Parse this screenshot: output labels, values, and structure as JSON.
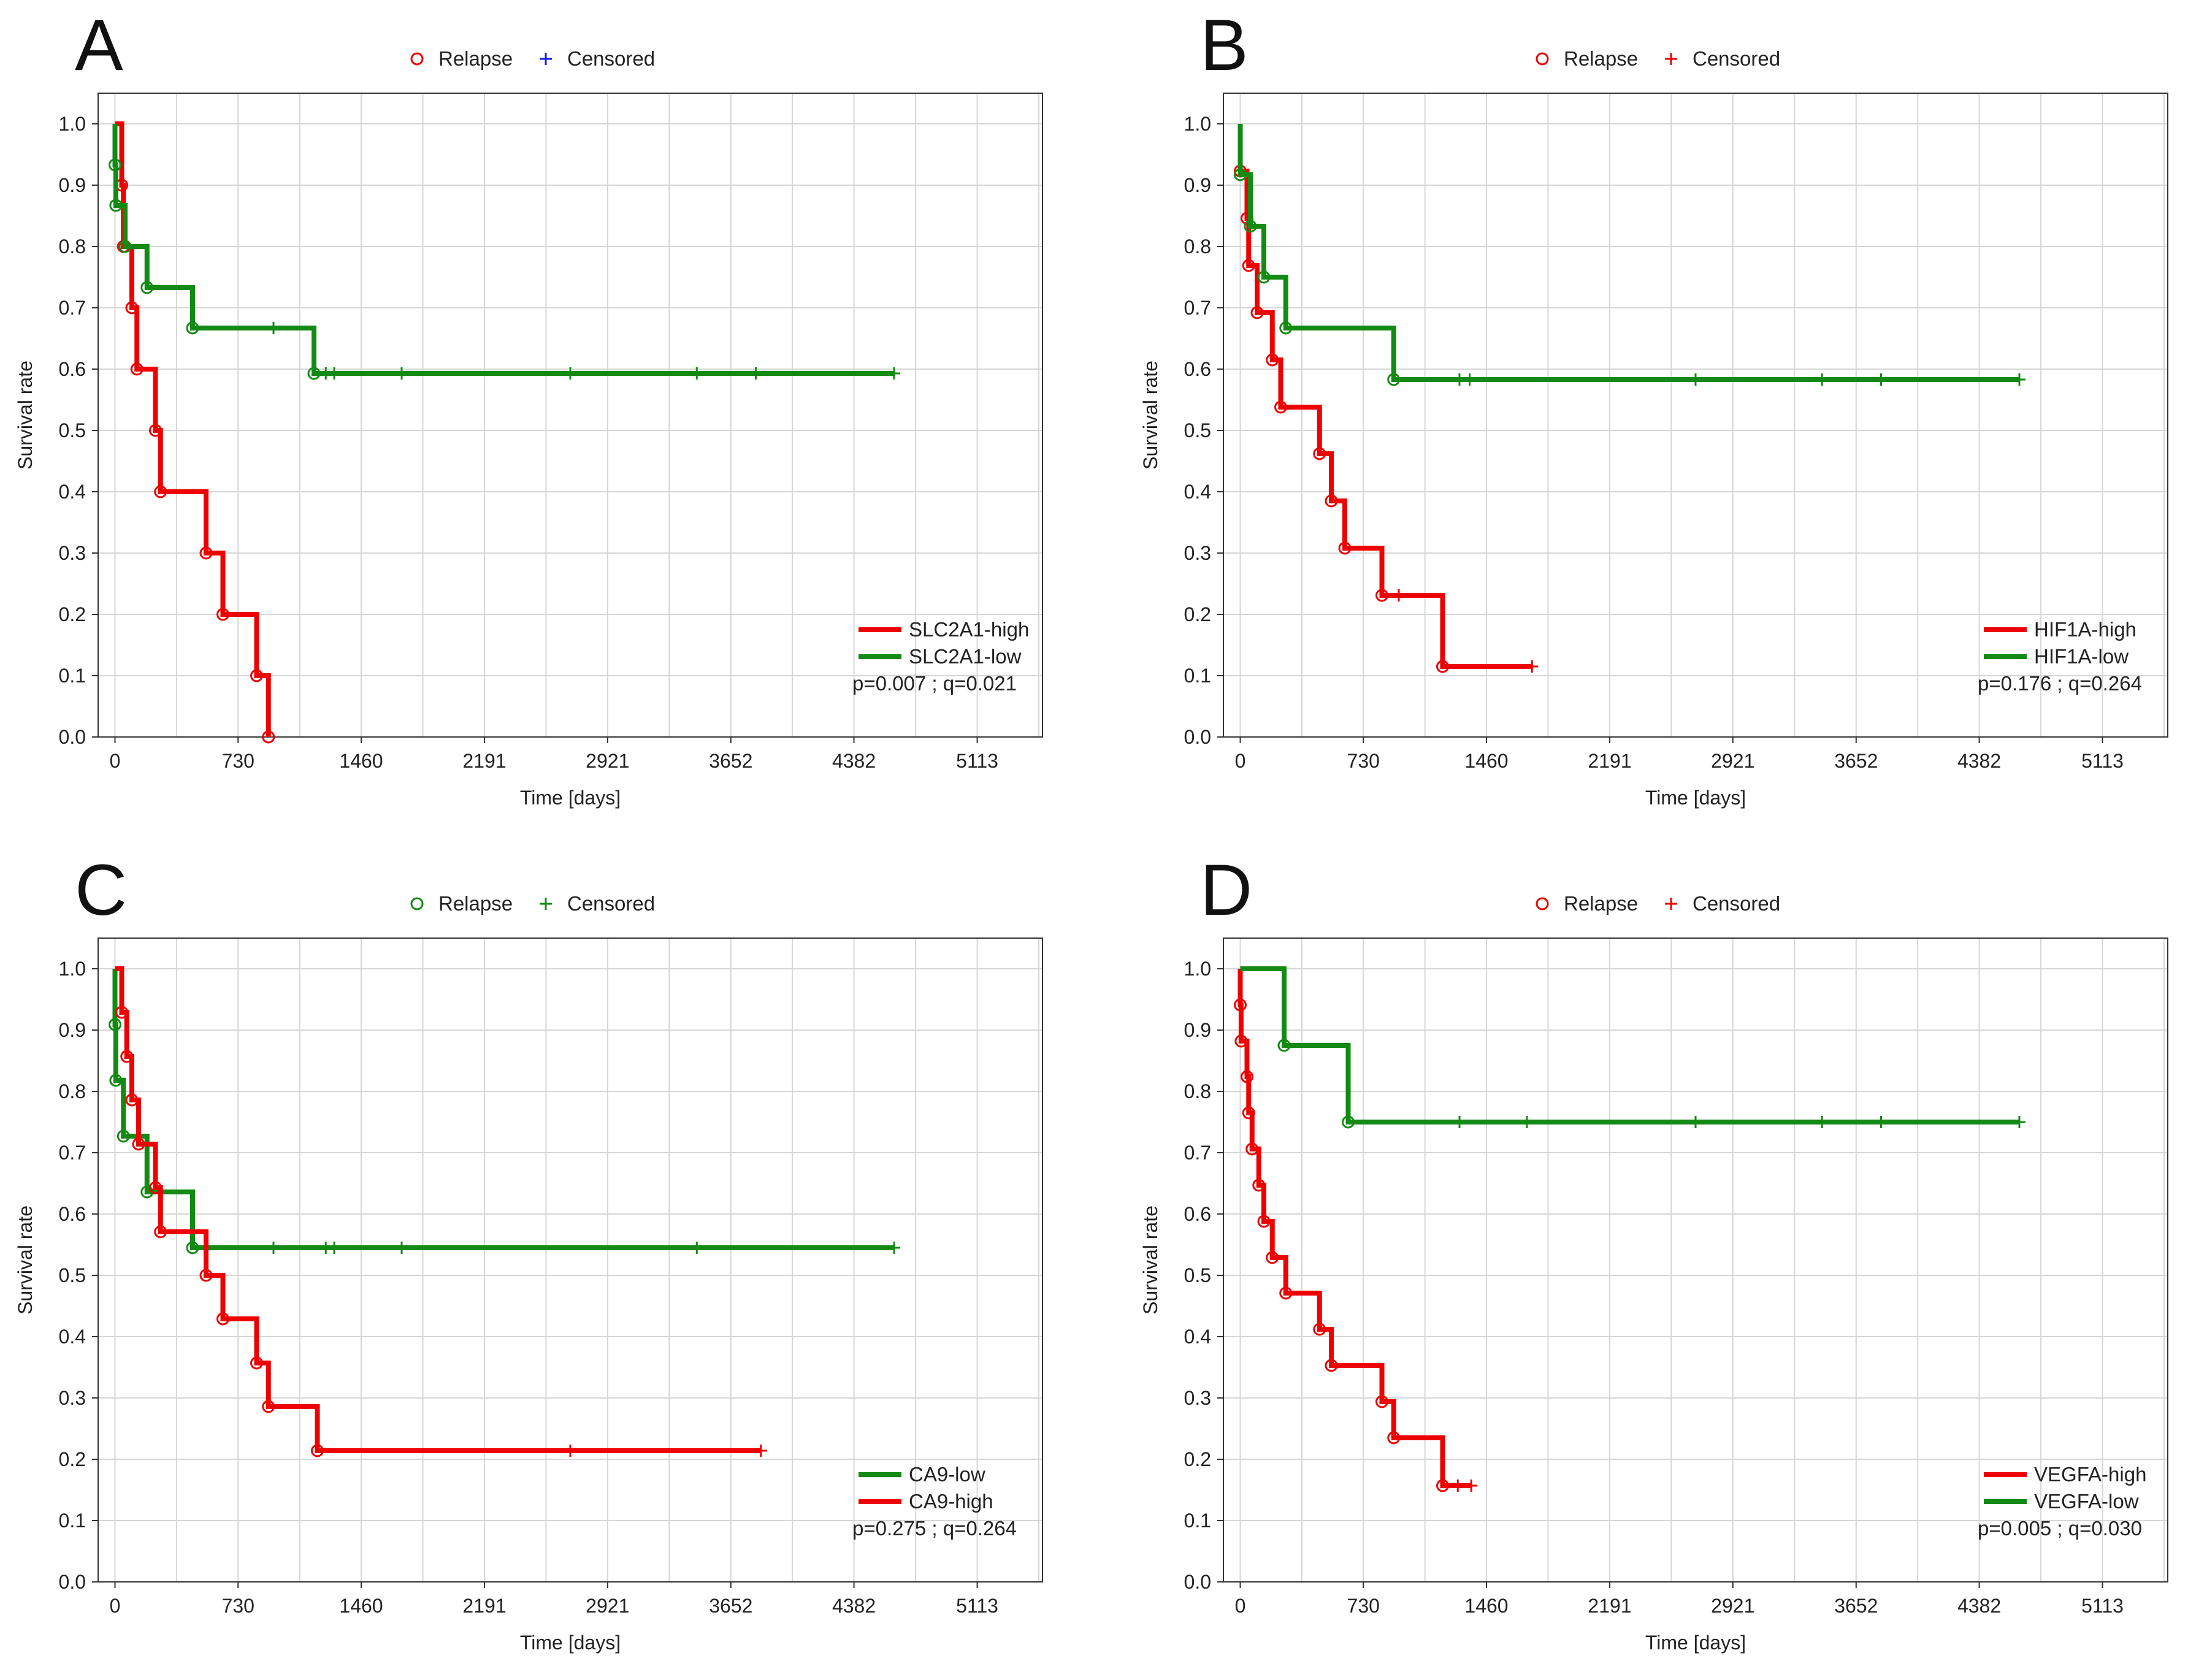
{
  "figure": {
    "x_axis": {
      "title": "Time [days]",
      "ticks": [
        0,
        730,
        1460,
        2191,
        2921,
        3652,
        4382,
        5113
      ],
      "range": [
        -100,
        5500
      ]
    },
    "y_axis": {
      "title": "Survival rate",
      "ticks": [
        "0.0",
        "0.1",
        "0.2",
        "0.3",
        "0.4",
        "0.5",
        "0.6",
        "0.7",
        "0.8",
        "0.9",
        "1.0"
      ],
      "range": [
        0,
        1.05
      ]
    }
  },
  "colors": {
    "red": "#ee0000",
    "green": "#138a13",
    "blue": "#1a1aee"
  },
  "chart_data": [
    {
      "type": "line",
      "panel": "A",
      "top_legend": [
        {
          "marker": "o",
          "label": "Relapse",
          "color": "red"
        },
        {
          "marker": "+",
          "label": "Censored",
          "color": "blue"
        }
      ],
      "legend": [
        {
          "label": "SLC2A1-high",
          "color": "red"
        },
        {
          "label": "SLC2A1-low",
          "color": "green"
        }
      ],
      "stats": "p=0.007 ; q=0.021",
      "series": [
        {
          "name": "SLC2A1-high",
          "color": "red",
          "steps": [
            [
              0,
              1.0
            ],
            [
              40,
              0.9
            ],
            [
              50,
              0.8
            ],
            [
              100,
              0.7
            ],
            [
              130,
              0.6
            ],
            [
              240,
              0.5
            ],
            [
              270,
              0.4
            ],
            [
              540,
              0.3
            ],
            [
              640,
              0.2
            ],
            [
              840,
              0.1
            ],
            [
              910,
              0.0
            ]
          ],
          "relapse": [
            [
              40,
              0.9
            ],
            [
              50,
              0.8
            ],
            [
              100,
              0.7
            ],
            [
              130,
              0.6
            ],
            [
              240,
              0.5
            ],
            [
              270,
              0.4
            ],
            [
              540,
              0.3
            ],
            [
              640,
              0.2
            ],
            [
              840,
              0.1
            ],
            [
              910,
              0.0
            ]
          ],
          "censored": []
        },
        {
          "name": "SLC2A1-low",
          "color": "green",
          "steps": [
            [
              0,
              1.0
            ],
            [
              0,
              0.933
            ],
            [
              5,
              0.867
            ],
            [
              60,
              0.8
            ],
            [
              190,
              0.733
            ],
            [
              460,
              0.667
            ],
            [
              1180,
              0.593
            ],
            [
              4620,
              0.593
            ]
          ],
          "relapse": [
            [
              0,
              0.933
            ],
            [
              5,
              0.867
            ],
            [
              60,
              0.8
            ],
            [
              190,
              0.733
            ],
            [
              460,
              0.667
            ],
            [
              1180,
              0.593
            ]
          ],
          "censored": [
            [
              940,
              0.667
            ],
            [
              1250,
              0.593
            ],
            [
              1300,
              0.593
            ],
            [
              1700,
              0.593
            ],
            [
              2700,
              0.593
            ],
            [
              3450,
              0.593
            ],
            [
              3800,
              0.593
            ],
            [
              4620,
              0.593
            ]
          ]
        }
      ]
    },
    {
      "type": "line",
      "panel": "B",
      "top_legend": [
        {
          "marker": "o",
          "label": "Relapse",
          "color": "red"
        },
        {
          "marker": "+",
          "label": "Censored",
          "color": "red"
        }
      ],
      "legend": [
        {
          "label": "HIF1A-high",
          "color": "red"
        },
        {
          "label": "HIF1A-low",
          "color": "green"
        }
      ],
      "stats": "p=0.176 ; q=0.264",
      "series": [
        {
          "name": "HIF1A-high",
          "color": "red",
          "steps": [
            [
              0,
              0.923
            ],
            [
              40,
              0.846
            ],
            [
              50,
              0.769
            ],
            [
              100,
              0.692
            ],
            [
              190,
              0.615
            ],
            [
              240,
              0.538
            ],
            [
              470,
              0.462
            ],
            [
              540,
              0.385
            ],
            [
              620,
              0.308
            ],
            [
              840,
              0.231
            ],
            [
              1200,
              0.115
            ],
            [
              1730,
              0.115
            ]
          ],
          "relapse": [
            [
              0,
              0.923
            ],
            [
              40,
              0.846
            ],
            [
              50,
              0.769
            ],
            [
              100,
              0.692
            ],
            [
              190,
              0.615
            ],
            [
              240,
              0.538
            ],
            [
              470,
              0.462
            ],
            [
              540,
              0.385
            ],
            [
              620,
              0.308
            ],
            [
              840,
              0.231
            ],
            [
              1200,
              0.115
            ]
          ],
          "censored": [
            [
              940,
              0.231
            ],
            [
              1730,
              0.115
            ]
          ]
        },
        {
          "name": "HIF1A-low",
          "color": "green",
          "steps": [
            [
              0,
              1.0
            ],
            [
              0,
              0.917
            ],
            [
              60,
              0.833
            ],
            [
              140,
              0.75
            ],
            [
              270,
              0.667
            ],
            [
              910,
              0.583
            ],
            [
              4620,
              0.583
            ]
          ],
          "relapse": [
            [
              0,
              0.917
            ],
            [
              60,
              0.833
            ],
            [
              140,
              0.75
            ],
            [
              270,
              0.667
            ],
            [
              910,
              0.583
            ]
          ],
          "censored": [
            [
              1300,
              0.583
            ],
            [
              1360,
              0.583
            ],
            [
              2700,
              0.583
            ],
            [
              3450,
              0.583
            ],
            [
              3800,
              0.583
            ],
            [
              4620,
              0.583
            ]
          ]
        }
      ]
    },
    {
      "type": "line",
      "panel": "C",
      "top_legend": [
        {
          "marker": "o",
          "label": "Relapse",
          "color": "green"
        },
        {
          "marker": "+",
          "label": "Censored",
          "color": "green"
        }
      ],
      "legend": [
        {
          "label": "CA9-low",
          "color": "green"
        },
        {
          "label": "CA9-high",
          "color": "red"
        }
      ],
      "stats": "p=0.275 ; q=0.264",
      "series": [
        {
          "name": "CA9-low",
          "color": "green",
          "steps": [
            [
              0,
              1.0
            ],
            [
              0,
              0.909
            ],
            [
              5,
              0.818
            ],
            [
              50,
              0.727
            ],
            [
              190,
              0.636
            ],
            [
              460,
              0.545
            ],
            [
              4620,
              0.545
            ]
          ],
          "relapse": [
            [
              0,
              0.909
            ],
            [
              5,
              0.818
            ],
            [
              50,
              0.727
            ],
            [
              190,
              0.636
            ],
            [
              460,
              0.545
            ]
          ],
          "censored": [
            [
              940,
              0.545
            ],
            [
              1250,
              0.545
            ],
            [
              1300,
              0.545
            ],
            [
              1700,
              0.545
            ],
            [
              3450,
              0.545
            ],
            [
              4620,
              0.545
            ]
          ]
        },
        {
          "name": "CA9-high",
          "color": "red",
          "steps": [
            [
              0,
              1.0
            ],
            [
              40,
              0.929
            ],
            [
              70,
              0.857
            ],
            [
              100,
              0.786
            ],
            [
              140,
              0.714
            ],
            [
              240,
              0.643
            ],
            [
              270,
              0.571
            ],
            [
              540,
              0.5
            ],
            [
              640,
              0.429
            ],
            [
              840,
              0.357
            ],
            [
              910,
              0.286
            ],
            [
              1200,
              0.214
            ],
            [
              3830,
              0.214
            ]
          ],
          "relapse": [
            [
              40,
              0.929
            ],
            [
              70,
              0.857
            ],
            [
              100,
              0.786
            ],
            [
              140,
              0.714
            ],
            [
              240,
              0.643
            ],
            [
              270,
              0.571
            ],
            [
              540,
              0.5
            ],
            [
              640,
              0.429
            ],
            [
              840,
              0.357
            ],
            [
              910,
              0.286
            ],
            [
              1200,
              0.214
            ]
          ],
          "censored": [
            [
              2700,
              0.214
            ],
            [
              3830,
              0.214
            ]
          ]
        }
      ]
    },
    {
      "type": "line",
      "panel": "D",
      "top_legend": [
        {
          "marker": "o",
          "label": "Relapse",
          "color": "red"
        },
        {
          "marker": "+",
          "label": "Censored",
          "color": "red"
        }
      ],
      "legend": [
        {
          "label": "VEGFA-high",
          "color": "red"
        },
        {
          "label": "VEGFA-low",
          "color": "green"
        }
      ],
      "stats": "p=0.005 ; q=0.030",
      "series": [
        {
          "name": "VEGFA-high",
          "color": "red",
          "steps": [
            [
              0,
              1.0
            ],
            [
              0,
              0.941
            ],
            [
              5,
              0.882
            ],
            [
              40,
              0.824
            ],
            [
              50,
              0.765
            ],
            [
              70,
              0.706
            ],
            [
              110,
              0.647
            ],
            [
              140,
              0.588
            ],
            [
              190,
              0.529
            ],
            [
              270,
              0.471
            ],
            [
              470,
              0.412
            ],
            [
              540,
              0.353
            ],
            [
              840,
              0.294
            ],
            [
              910,
              0.235
            ],
            [
              1200,
              0.157
            ],
            [
              1370,
              0.157
            ]
          ],
          "relapse": [
            [
              0,
              0.941
            ],
            [
              5,
              0.882
            ],
            [
              40,
              0.824
            ],
            [
              50,
              0.765
            ],
            [
              70,
              0.706
            ],
            [
              110,
              0.647
            ],
            [
              140,
              0.588
            ],
            [
              190,
              0.529
            ],
            [
              270,
              0.471
            ],
            [
              470,
              0.412
            ],
            [
              540,
              0.353
            ],
            [
              840,
              0.294
            ],
            [
              910,
              0.235
            ],
            [
              1200,
              0.157
            ]
          ],
          "censored": [
            [
              1290,
              0.157
            ],
            [
              1370,
              0.157
            ]
          ]
        },
        {
          "name": "VEGFA-low",
          "color": "green",
          "steps": [
            [
              0,
              1.0
            ],
            [
              260,
              0.875
            ],
            [
              640,
              0.75
            ],
            [
              4620,
              0.75
            ]
          ],
          "relapse": [
            [
              260,
              0.875
            ],
            [
              640,
              0.75
            ]
          ],
          "censored": [
            [
              1300,
              0.75
            ],
            [
              1700,
              0.75
            ],
            [
              2700,
              0.75
            ],
            [
              3450,
              0.75
            ],
            [
              3800,
              0.75
            ],
            [
              4620,
              0.75
            ]
          ]
        }
      ]
    }
  ]
}
